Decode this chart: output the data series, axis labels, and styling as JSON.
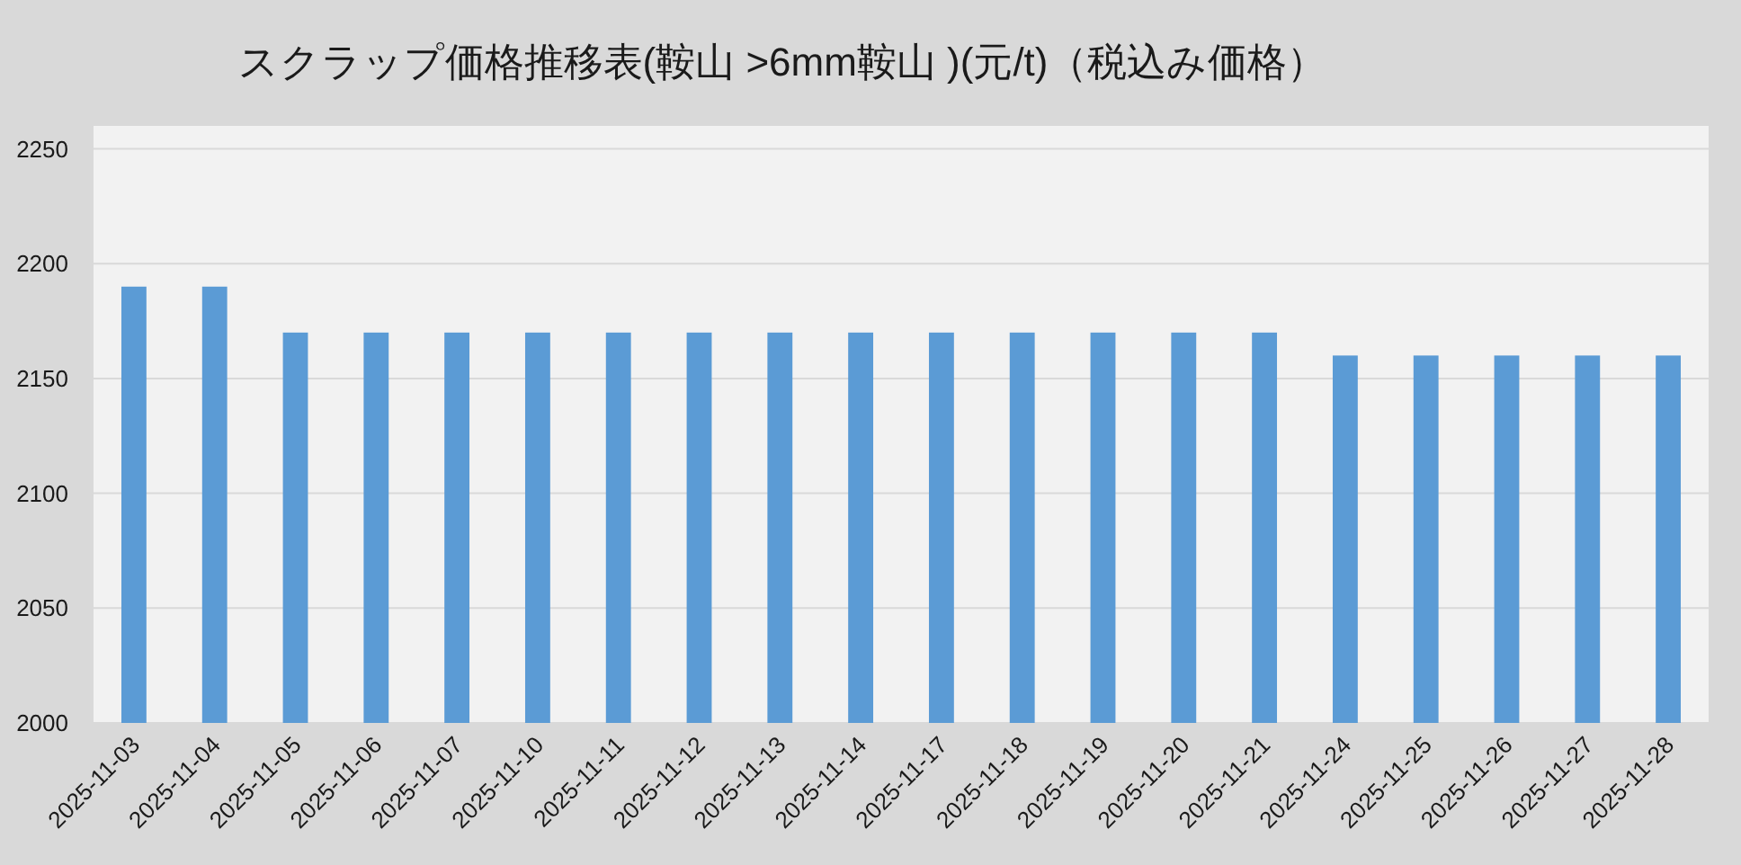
{
  "chart_data": {
    "type": "bar",
    "title": "スクラップ価格推移表(鞍山 >6mm鞍山 )(元/t)（税込み価格）",
    "categories": [
      "2025-11-03",
      "2025-11-04",
      "2025-11-05",
      "2025-11-06",
      "2025-11-07",
      "2025-11-10",
      "2025-11-11",
      "2025-11-12",
      "2025-11-13",
      "2025-11-14",
      "2025-11-17",
      "2025-11-18",
      "2025-11-19",
      "2025-11-20",
      "2025-11-21",
      "2025-11-24",
      "2025-11-25",
      "2025-11-26",
      "2025-11-27",
      "2025-11-28"
    ],
    "values": [
      2190,
      2190,
      2170,
      2170,
      2170,
      2170,
      2170,
      2170,
      2170,
      2170,
      2170,
      2170,
      2170,
      2170,
      2170,
      2160,
      2160,
      2160,
      2160,
      2160
    ],
    "color": "#5b9bd5",
    "ylim": [
      2000,
      2260
    ],
    "yticks": [
      2000,
      2050,
      2100,
      2150,
      2200,
      2250
    ],
    "grid": "y"
  }
}
